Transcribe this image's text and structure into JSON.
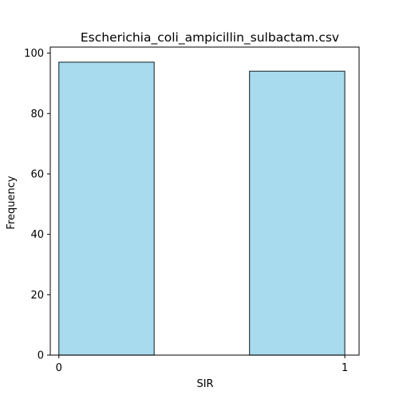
{
  "chart_data": {
    "type": "bar",
    "title": "Escherichia_coli_ampicillin_sulbactam.csv",
    "xlabel": "SIR",
    "ylabel": "Frequency",
    "categories": [
      "0",
      "1"
    ],
    "values": [
      97,
      94
    ],
    "xlim": [
      -0.03,
      1.05
    ],
    "ylim": [
      0,
      102
    ],
    "xticks": [
      0,
      1
    ],
    "xtick_labels": [
      "0",
      "1"
    ],
    "yticks": [
      0,
      20,
      40,
      60,
      80,
      100
    ],
    "ytick_labels": [
      "0",
      "20",
      "40",
      "60",
      "80",
      "100"
    ],
    "bins": [
      [
        0,
        0.3333
      ],
      [
        0.6667,
        1
      ]
    ],
    "bar_color": "#a8dbed",
    "edge_color": "#2f3e46",
    "grid": false,
    "legend": "none"
  }
}
